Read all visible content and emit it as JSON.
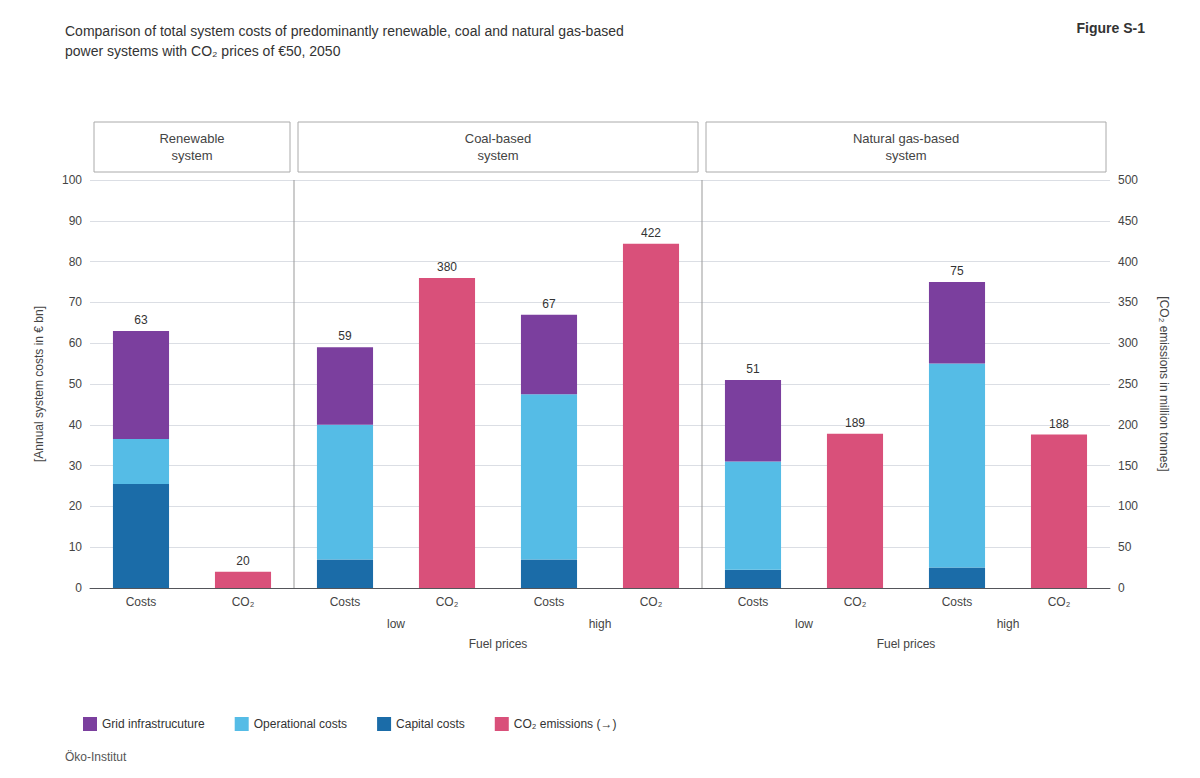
{
  "chart_data": {
    "type": "bar",
    "title": "Comparison of total system costs of predominantly renewable, coal and natural gas-based\npower systems with CO₂ prices of €50, 2050",
    "figure_label": "Figure S-1",
    "footer": "Öko-Institut",
    "ylabel": "[Annual system costs in € bn]",
    "y2label": "[CO₂ emissions in million tonnes]",
    "categories": [
      "Costs",
      "CO₂",
      "Costs",
      "CO₂",
      "Costs",
      "CO₂",
      "Costs",
      "CO₂",
      "Costs",
      "CO₂"
    ],
    "groups": [
      "Renewable\nsystem",
      "Renewable\nsystem",
      "Coal-based\nsystem",
      "Coal-based\nsystem",
      "Coal-based\nsystem",
      "Coal-based\nsystem",
      "Natural gas-based\nsystem",
      "Natural gas-based\nsystem",
      "Natural gas-based\nsystem",
      "Natural gas-based\nsystem"
    ],
    "fuel_prices": [
      null,
      null,
      "low",
      "low",
      "high",
      "high",
      "low",
      "low",
      "high",
      "high"
    ],
    "fuel_prices_title": "Fuel prices",
    "series": [
      {
        "name": "Grid infrastrucuture",
        "color": "#7b3f9e",
        "values": [
          26.5,
          null,
          19.0,
          null,
          19.5,
          null,
          20.0,
          null,
          20.0,
          null
        ]
      },
      {
        "name": "Operational costs",
        "color": "#55bce6",
        "values": [
          11.0,
          null,
          33.0,
          null,
          40.5,
          null,
          26.5,
          null,
          50.0,
          null
        ]
      },
      {
        "name": "Capital costs",
        "color": "#1b6ca8",
        "values": [
          25.5,
          null,
          7.0,
          null,
          7.0,
          null,
          4.5,
          null,
          5.0,
          null
        ]
      },
      {
        "name": "CO₂ emissions (→)",
        "color": "#d9507a",
        "axis": "y2",
        "values": [
          null,
          20,
          null,
          380,
          null,
          422,
          null,
          189,
          null,
          188
        ]
      }
    ],
    "totals": [
      63,
      20,
      59,
      380,
      67,
      422,
      51,
      189,
      75,
      188
    ],
    "ylim": [
      0,
      100
    ],
    "yticks": [
      0,
      10,
      20,
      30,
      40,
      50,
      60,
      70,
      80,
      90,
      100
    ],
    "y2lim": [
      0,
      500
    ],
    "y2ticks": [
      0,
      50,
      100,
      150,
      200,
      250,
      300,
      350,
      400,
      450,
      500
    ],
    "grid": true,
    "stacked": true,
    "legend": "lower left"
  }
}
